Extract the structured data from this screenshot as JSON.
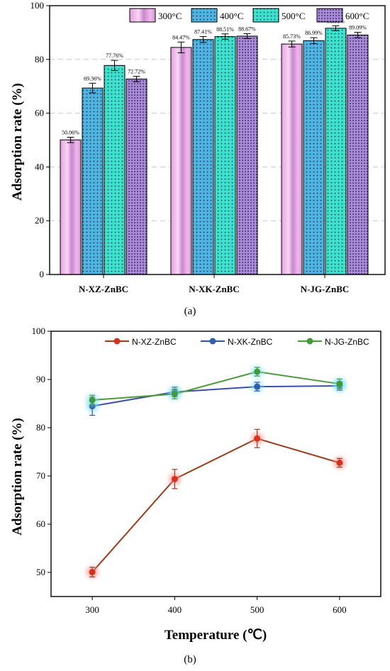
{
  "chart_data": [
    {
      "type": "bar",
      "panel_label": "(a)",
      "ylabel": "Adsorption rate (%)",
      "xlabel": "",
      "ylim": [
        0,
        100
      ],
      "yticks": [
        0,
        20,
        40,
        60,
        80,
        100
      ],
      "grid": "horizontal dashed",
      "legend_position": "top-right",
      "categories": [
        "N-XZ-ZnBC",
        "N-XK-ZnBC",
        "N-JG-ZnBC"
      ],
      "series": [
        {
          "name": "300°C",
          "values": [
            50.06,
            84.47,
            85.73
          ],
          "errors": [
            1.0,
            2.0,
            1.1
          ],
          "labels": [
            "50.06%",
            "84.47%",
            "85.73%"
          ],
          "color": "#d39ad8",
          "pattern": "gradient-pink"
        },
        {
          "name": "400°C",
          "values": [
            69.36,
            87.41,
            86.99
          ],
          "errors": [
            1.8,
            1.1,
            1.1
          ],
          "labels": [
            "69.36%",
            "87.41%",
            "86.99%"
          ],
          "color": "#3aa8d8",
          "pattern": "dots-blue"
        },
        {
          "name": "500°C",
          "values": [
            77.76,
            88.51,
            91.61
          ],
          "errors": [
            1.9,
            1.0,
            0.9
          ],
          "labels": [
            "77.76%",
            "88.51%",
            "91.61%"
          ],
          "color": "#2fd9c8",
          "pattern": "dots-teal"
        },
        {
          "name": "600°C",
          "values": [
            72.72,
            88.67,
            89.09
          ],
          "errors": [
            1.0,
            0.9,
            1.0
          ],
          "labels": [
            "72.72%",
            "88.67%",
            "89.09%"
          ],
          "color": "#8f6fd0",
          "pattern": "dots-purple"
        }
      ]
    },
    {
      "type": "line",
      "panel_label": "(b)",
      "xlabel": "Temperature (℃)",
      "ylabel": "Adsorption rate (%)",
      "xlim": [
        250,
        650
      ],
      "ylim": [
        45,
        100
      ],
      "x": [
        300,
        400,
        500,
        600
      ],
      "xticks": [
        300,
        400,
        500,
        600
      ],
      "yticks": [
        50,
        60,
        70,
        80,
        90,
        100
      ],
      "grid": "off",
      "legend_position": "top",
      "series": [
        {
          "name": "N-XZ-ZnBC",
          "values": [
            50.06,
            69.36,
            77.76,
            72.72
          ],
          "errors": [
            1.0,
            2.0,
            1.9,
            0.9
          ],
          "color": "#9a3d1e",
          "marker_color": "#d8321e",
          "glow": "#ff8888"
        },
        {
          "name": "N-XK-ZnBC",
          "values": [
            84.47,
            87.41,
            88.51,
            88.67
          ],
          "errors": [
            1.9,
            1.0,
            0.9,
            0.9
          ],
          "color": "#3a4fa6",
          "marker_color": "#2f5fa8",
          "glow": "#7fe0ff"
        },
        {
          "name": "N-JG-ZnBC",
          "values": [
            85.73,
            86.99,
            91.61,
            89.09
          ],
          "errors": [
            1.0,
            1.0,
            0.9,
            1.0
          ],
          "color": "#4e9a3a",
          "marker_color": "#3f9b3a",
          "glow": "#7fe0ff"
        }
      ]
    }
  ]
}
